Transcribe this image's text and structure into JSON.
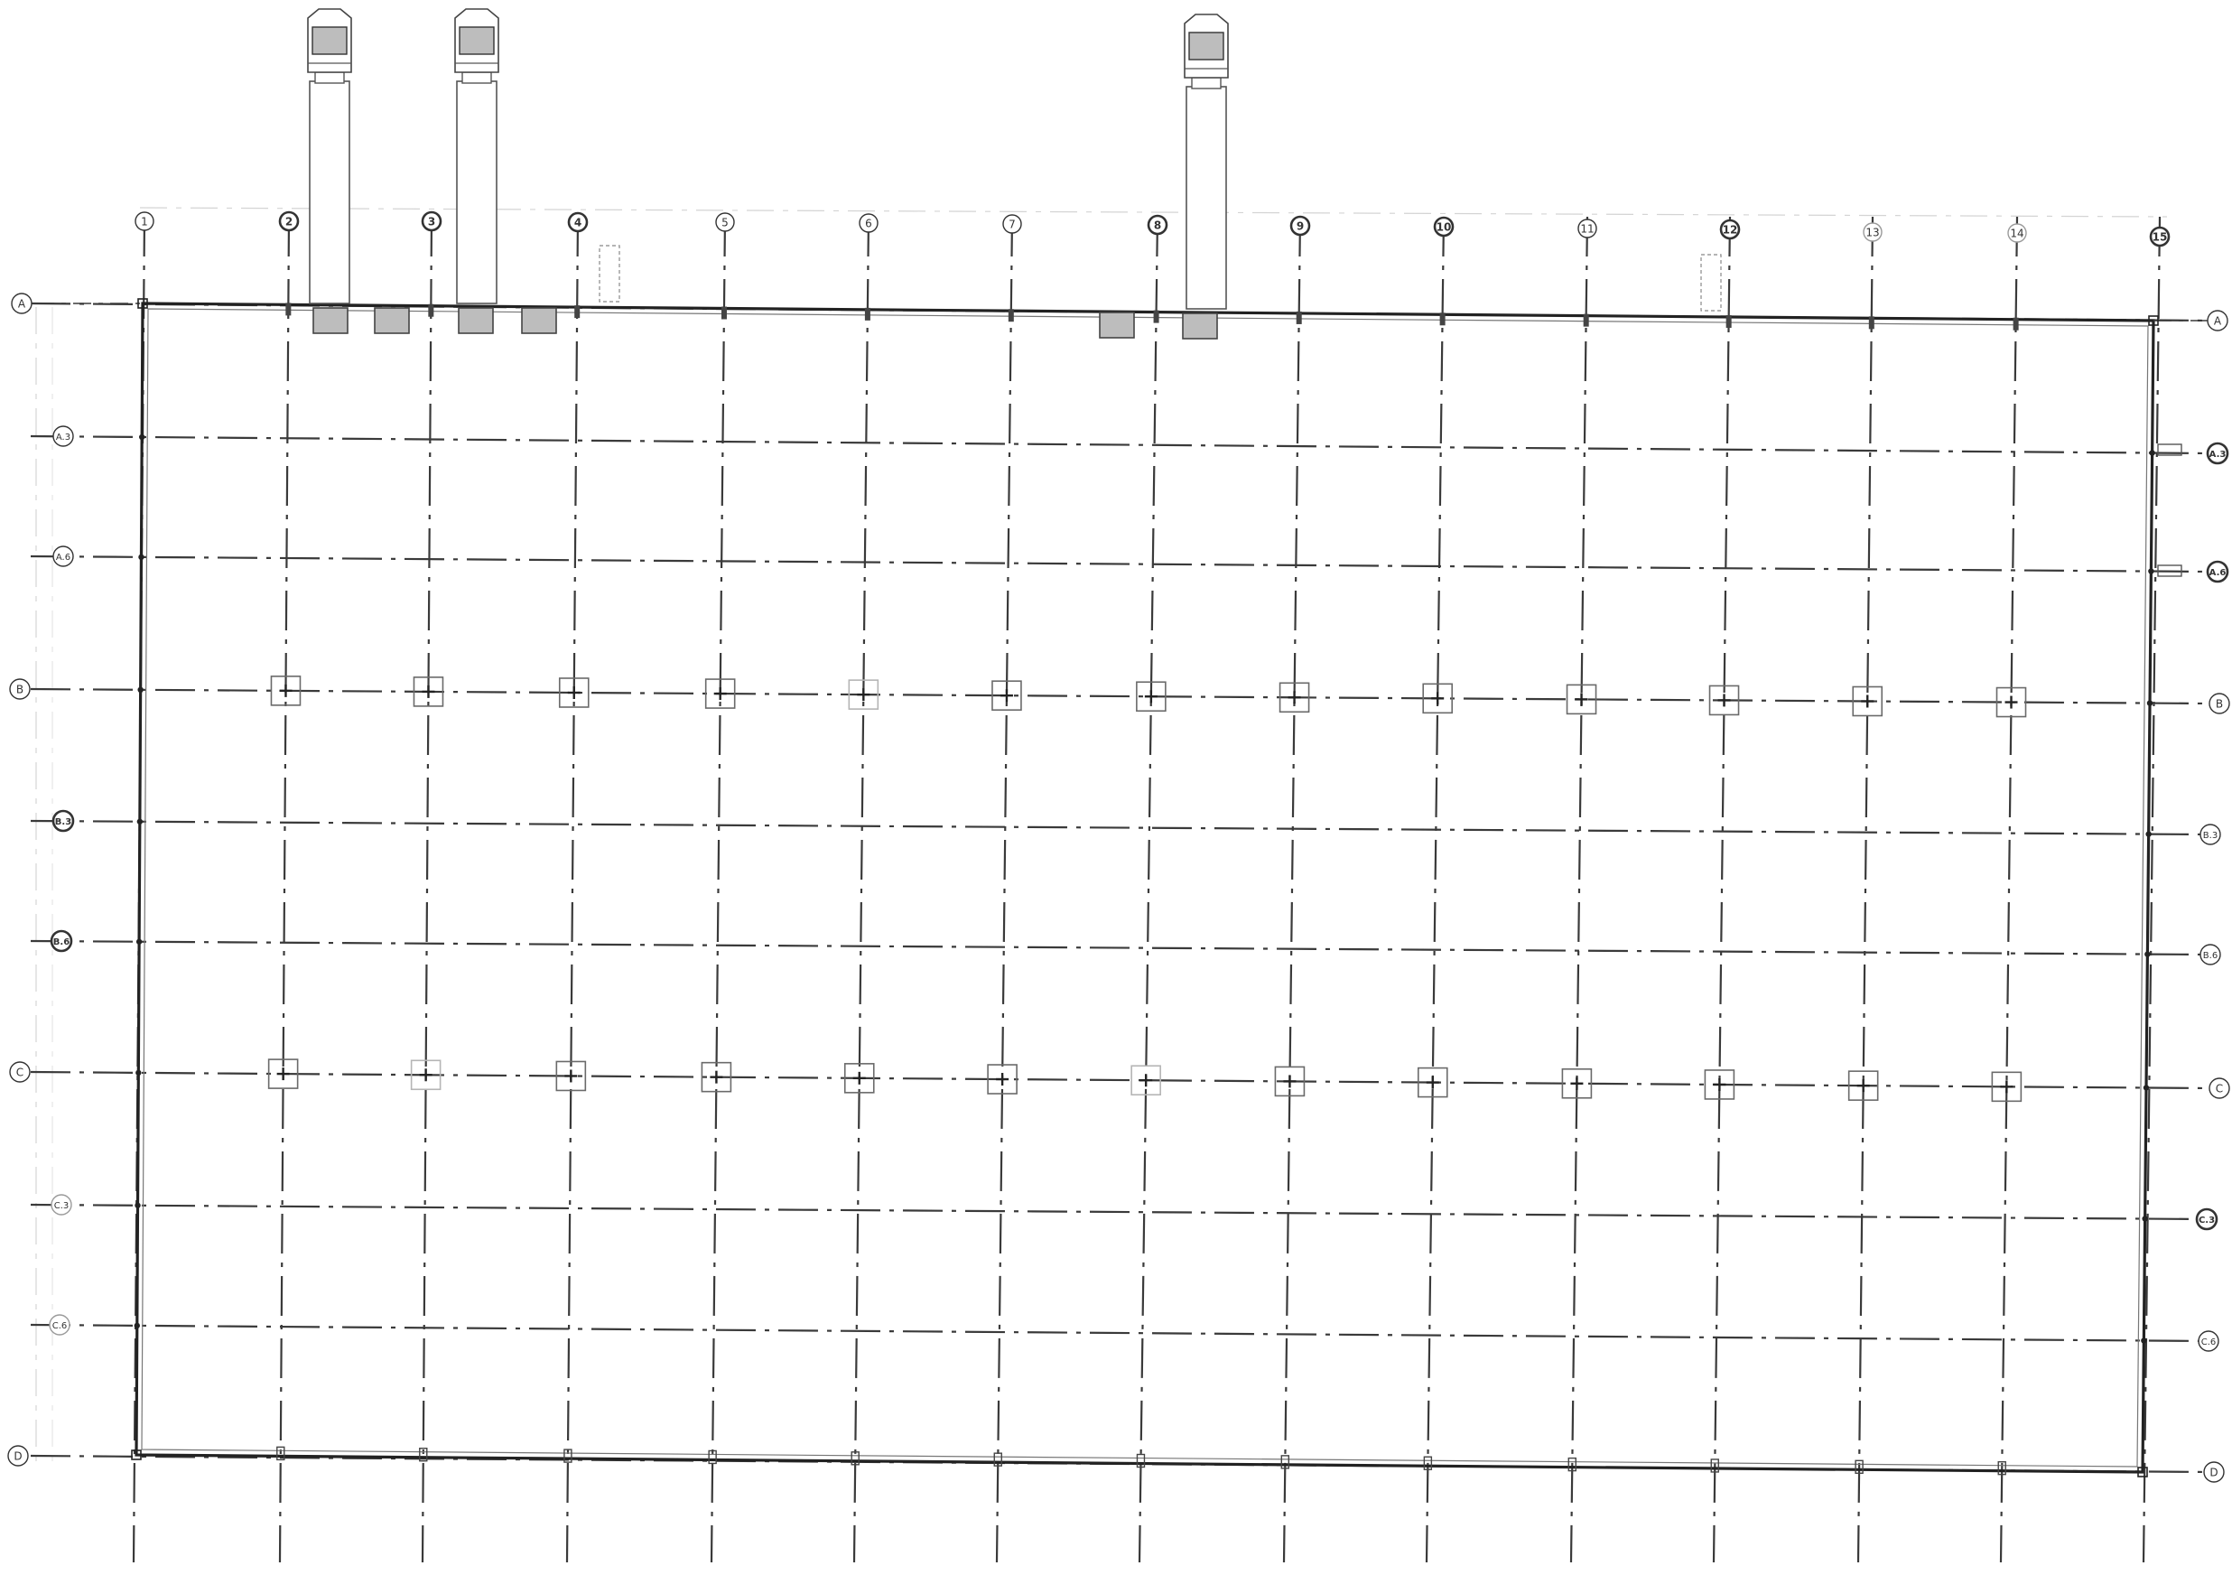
{
  "drawing": {
    "vertical_grid_labels": [
      "1",
      "2",
      "3",
      "4",
      "5",
      "6",
      "7",
      "8",
      "9",
      "10",
      "11",
      "12",
      "13",
      "14",
      "15"
    ],
    "horizontal_grid_labels_left": [
      "A",
      "A.3",
      "A.6",
      "B",
      "B.3",
      "B.6",
      "C",
      "C.3",
      "C.6",
      "D"
    ],
    "horizontal_grid_labels_right": [
      "A",
      "A.3",
      "A.6",
      "B",
      "B.3",
      "B.6",
      "C",
      "C.3",
      "C.6",
      "D"
    ],
    "line_color": "#3a3a3a",
    "light_line_color": "#9a9a9a",
    "fill_color": "#bdbdbd"
  }
}
